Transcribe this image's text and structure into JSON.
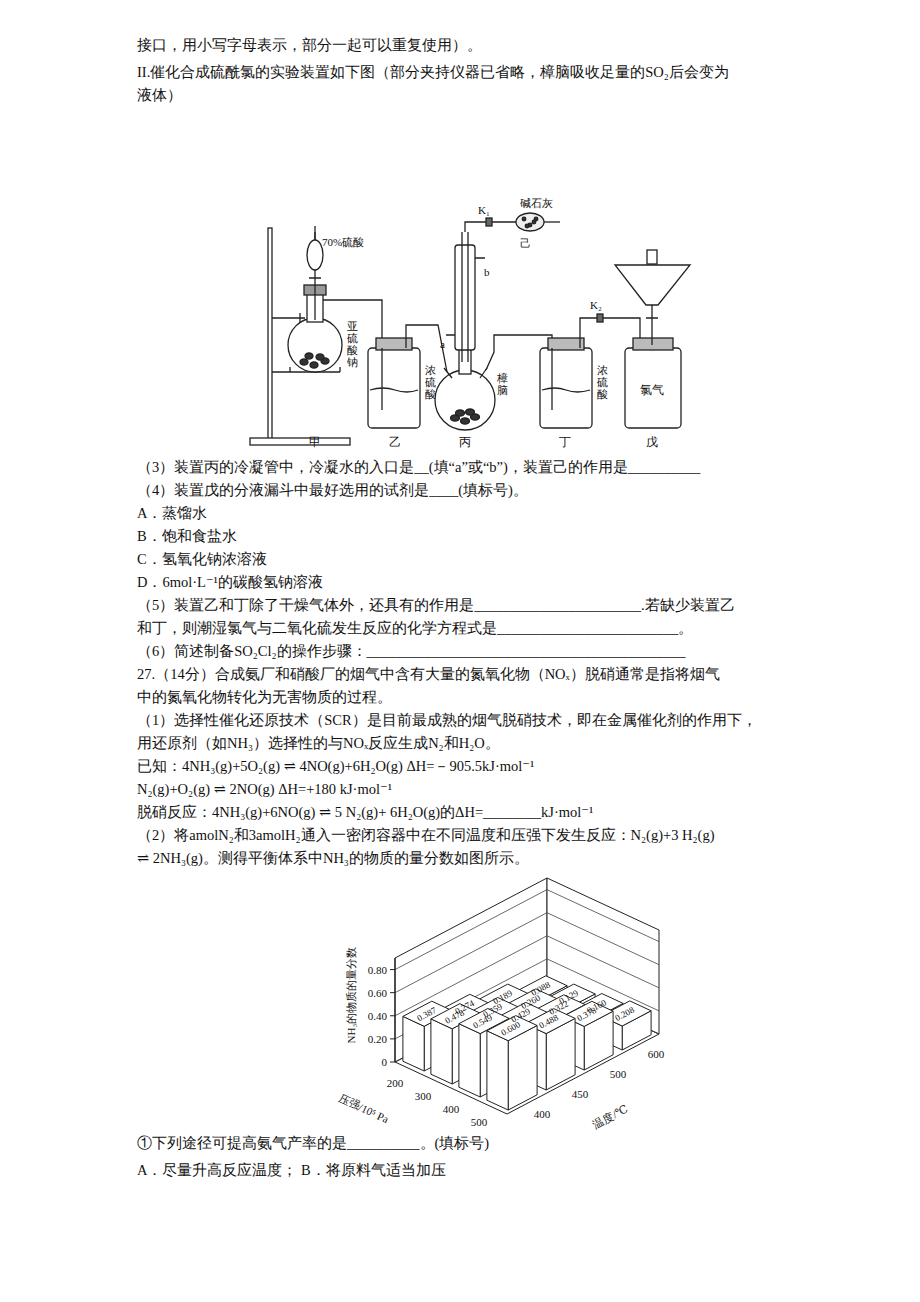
{
  "document": {
    "text_before": [
      "接口，用小写字母表示，部分一起可以重复使用）。",
      "II.催化合成硫酰氯的实验装置如下图（部分夹持仪器已省略，樟脑吸收足量的SO₂后会变为",
      "液体）"
    ],
    "figure": {
      "funnel_acid": "70%硫酸",
      "sulfite": "亚硫酸钠",
      "bottle_b_acid": "浓硫酸",
      "camphor": "樟脑",
      "inlet_a": "a",
      "inlet_b": "b",
      "valve_1": "K₁",
      "soda_lime": "碱石灰",
      "tube_name": "己",
      "bottle_d_acid": "浓硫酸",
      "valve_2": "K₂",
      "chlorine": "氯气",
      "apparatus": [
        "甲",
        "乙",
        "丙",
        "丁",
        "戊"
      ]
    },
    "text_middle": [
      "（3）装置丙的冷凝管中，冷凝水的入口是__(填“a”或“b”)，装置己的作用是__________",
      "（4）装置戊的分液漏斗中最好选用的试剂是____(填标号)。",
      "A．蒸馏水",
      "B．饱和食盐水",
      "C．氢氧化钠浓溶液",
      "D．6mol·L⁻¹的碳酸氢钠溶液",
      "（5）装置乙和丁除了干燥气体外，还具有的作用是_______________________.若缺少装置乙",
      "和丁，则潮湿氯气与二氧化硫发生反应的化学方程式是_________________________。",
      "（6）简述制备SO₂Cl₂的操作步骤：____________________________________________",
      "27.（14分）合成氨厂和硝酸厂的烟气中含有大量的氮氧化物（NOₓ）脱硝通常是指将烟气",
      "中的氮氧化物转化为无害物质的过程。",
      "（1）选择性催化还原技术（SCR）是目前最成熟的烟气脱硝技术，即在金属催化剂的作用下，",
      "用还原剂（如NH₃）选择性的与NOₓ反应生成N₂和H₂O。",
      "已知：4NH₃(g)+5O₂(g) ⇌ 4NO(g)+6H₂O(g)    ΔH=－905.5kJ·mol⁻¹",
      "N₂(g)+O₂(g) ⇌ 2NO(g)    ΔH=+180 kJ·mol⁻¹",
      "脱硝反应：4NH₃(g)+6NO(g) ⇌ 5 N₂(g)+ 6H₂O(g)的ΔH=________kJ·mol⁻¹",
      "（2）将amolN₂和3amolH₂通入一密闭容器中在不同温度和压强下发生反应：N₂(g)+3 H₂(g)",
      "⇌ 2NH₃(g)。测得平衡体系中NH₃的物质的量分数如图所示。"
    ],
    "text_after": [
      "①下列途径可提高氨气产率的是__________。(填标号)",
      "A．尽量升高反应温度；  B．将原料气适当加压"
    ]
  },
  "chart_data": {
    "type": "bar3d",
    "y_label": "NH₃的物质的量分数",
    "x_label": "压强/10⁵ Pa",
    "z_label": "温度/℃",
    "categories": [
      200,
      300,
      400,
      500
    ],
    "series": [
      {
        "name": "400",
        "values": [
          0.387,
          0.478,
          0.549,
          0.6
        ],
        "value_labels": [
          "0.387",
          "0.478",
          "0.549",
          "0.600"
        ]
      },
      {
        "name": "450",
        "values": [
          0.274,
          0.359,
          0.429,
          0.488
        ],
        "value_labels": [
          "0.274",
          "0.359",
          "0.429",
          "0.488"
        ]
      },
      {
        "name": "500",
        "values": [
          0.189,
          0.26,
          0.322,
          0.378
        ],
        "value_labels": [
          "0.189",
          "0.260",
          "0.322",
          "0.378"
        ]
      },
      {
        "name": "600",
        "values": [
          0.088,
          0.129,
          0.16,
          0.208
        ],
        "value_labels": [
          "0.088",
          "0.129",
          "0.160",
          "0.208"
        ]
      }
    ],
    "ylim": [
      0,
      0.9
    ],
    "yticks": [
      0,
      {
        "value": 0.2,
        "label": "0.20"
      },
      {
        "value": 0.4,
        "label": "0.40"
      },
      {
        "value": 0.6,
        "label": "0.60"
      },
      {
        "value": 0.8,
        "label": "0.80"
      }
    ],
    "color": "#ffffff",
    "grid": true,
    "data_labels": true
  }
}
